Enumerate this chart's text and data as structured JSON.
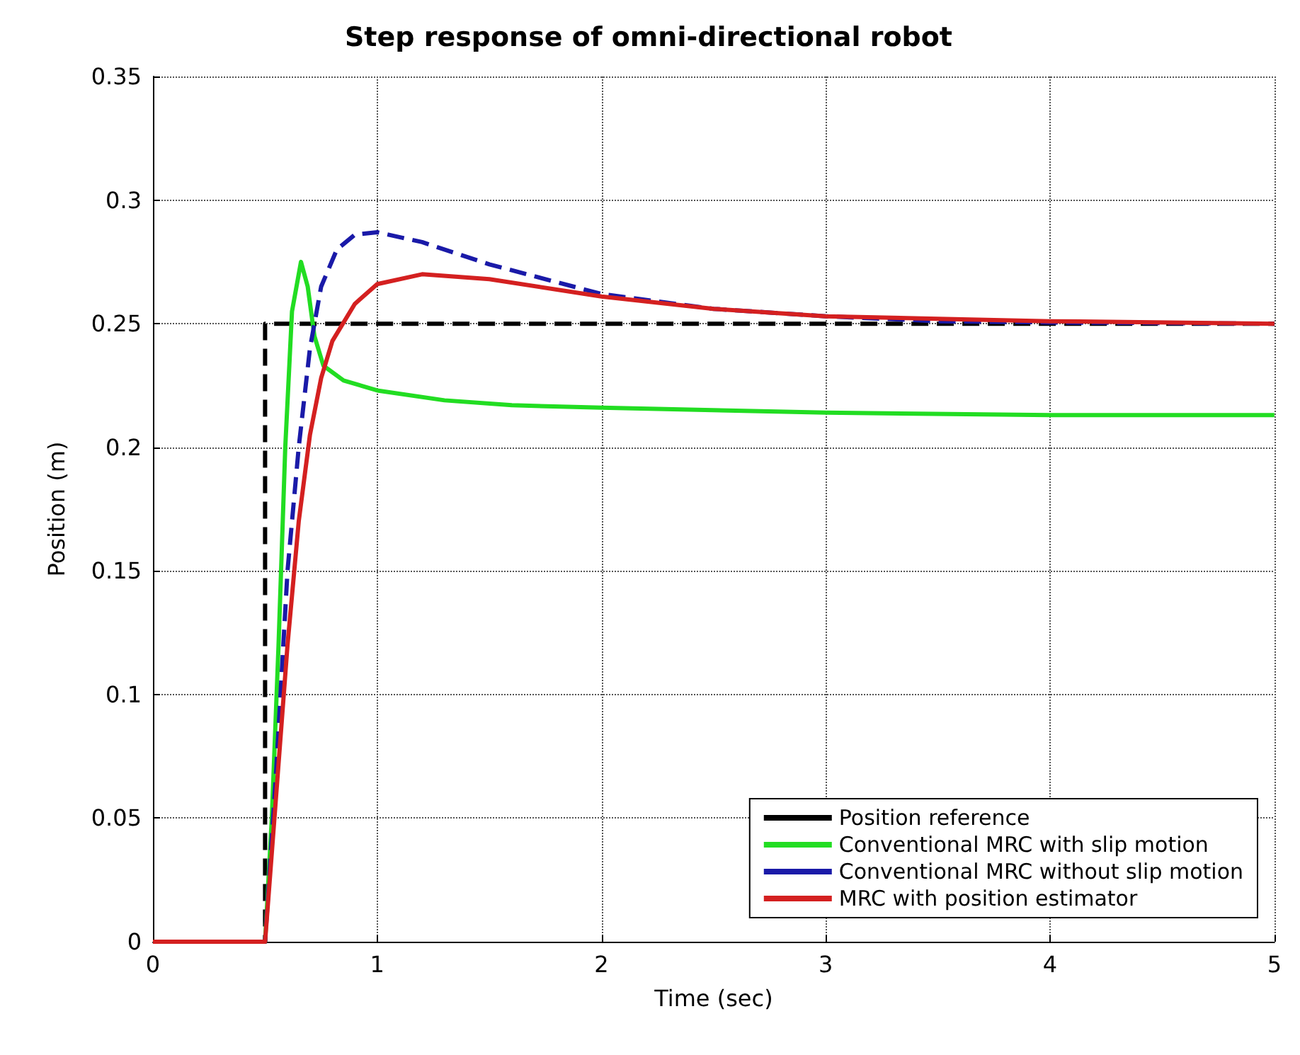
{
  "chart_data": {
    "type": "line",
    "title": "Step response of omni-directional robot",
    "xlabel": "Time (sec)",
    "ylabel": "Position (m)",
    "xlim": [
      0,
      5
    ],
    "ylim": [
      0,
      0.35
    ],
    "xticks": [
      0,
      1,
      2,
      3,
      4,
      5
    ],
    "yticks": [
      0,
      0.05,
      0.1,
      0.15,
      0.2,
      0.25,
      0.3,
      0.35
    ],
    "grid": true,
    "legend": "bottom right",
    "marker": "none",
    "series": [
      {
        "name": "Position reference",
        "color": "#000000",
        "line_style": "dashed",
        "x": [
          0,
          0.5,
          0.5,
          5
        ],
        "values": [
          0,
          0,
          0.25,
          0.25
        ]
      },
      {
        "name": "Conventional MRC with slip motion",
        "color": "#22dd22",
        "line_style": "solid",
        "x": [
          0,
          0.5,
          0.53,
          0.56,
          0.59,
          0.62,
          0.66,
          0.69,
          0.72,
          0.76,
          0.85,
          1,
          1.3,
          1.6,
          2,
          3,
          4,
          5
        ],
        "values": [
          0,
          0,
          0.05,
          0.12,
          0.2,
          0.255,
          0.275,
          0.265,
          0.245,
          0.233,
          0.227,
          0.223,
          0.219,
          0.217,
          0.216,
          0.214,
          0.213,
          0.213
        ]
      },
      {
        "name": "Conventional MRC without slip motion",
        "color": "#1a1aa8",
        "line_style": "dashed",
        "x": [
          0,
          0.5,
          0.55,
          0.6,
          0.65,
          0.7,
          0.75,
          0.82,
          0.9,
          1,
          1.2,
          1.5,
          2,
          2.5,
          3,
          3.5,
          4,
          5
        ],
        "values": [
          0,
          0,
          0.07,
          0.15,
          0.2,
          0.24,
          0.265,
          0.28,
          0.286,
          0.287,
          0.283,
          0.274,
          0.262,
          0.256,
          0.253,
          0.251,
          0.2505,
          0.25
        ]
      },
      {
        "name": "MRC with position estimator",
        "color": "#d42020",
        "line_style": "solid",
        "x": [
          0,
          0.5,
          0.55,
          0.6,
          0.65,
          0.7,
          0.75,
          0.8,
          0.9,
          1,
          1.2,
          1.5,
          2,
          2.5,
          3,
          3.5,
          4,
          5
        ],
        "values": [
          0,
          0,
          0.06,
          0.12,
          0.17,
          0.205,
          0.228,
          0.243,
          0.258,
          0.266,
          0.27,
          0.268,
          0.261,
          0.256,
          0.253,
          0.252,
          0.251,
          0.25
        ]
      }
    ]
  }
}
